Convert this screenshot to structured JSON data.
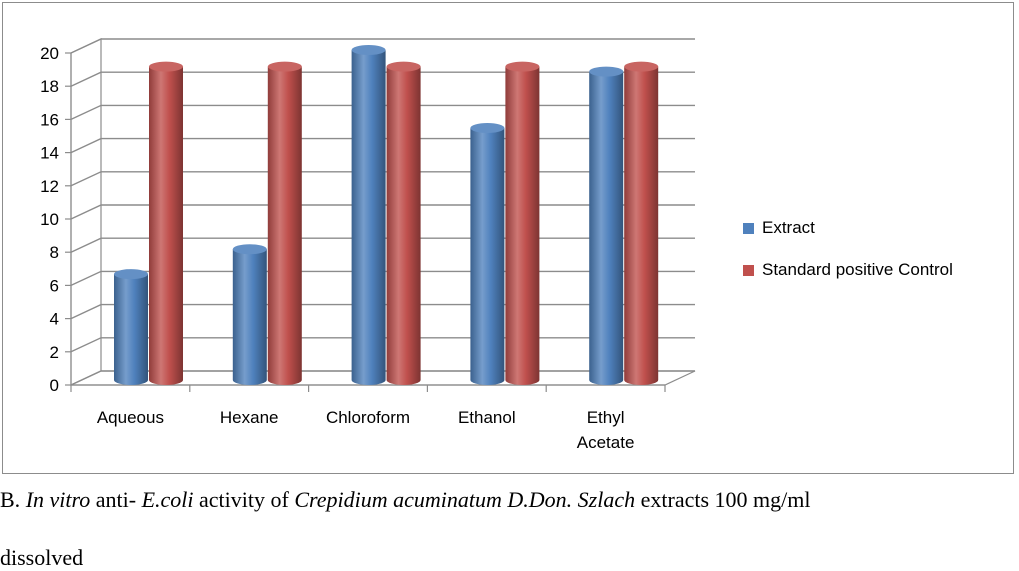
{
  "chart_data": {
    "type": "bar",
    "style": "3d-cylinder",
    "categories": [
      "Aqueous",
      "Hexane",
      "Chloroform",
      "Ethanol",
      "Ethyl Acetate"
    ],
    "category_lines": [
      [
        "Aqueous"
      ],
      [
        "Hexane"
      ],
      [
        "Chloroform"
      ],
      [
        "Ethanol"
      ],
      [
        "Ethyl",
        "Acetate"
      ]
    ],
    "series": [
      {
        "name": "Extract",
        "color": "#4f81bd",
        "values": [
          6.5,
          8,
          20,
          15.3,
          18.7
        ]
      },
      {
        "name": "Standard positive Control",
        "color": "#c0504d",
        "values": [
          19,
          19,
          19,
          19,
          19
        ]
      }
    ],
    "ylim": [
      0,
      20
    ],
    "yticks": [
      0,
      2,
      4,
      6,
      8,
      10,
      12,
      14,
      16,
      18,
      20
    ],
    "grid": true,
    "legend_position": "right"
  },
  "caption": {
    "line1": {
      "prefix": "B. ",
      "italic1": "In vitro",
      "mid1": " anti- ",
      "italic2": "E.coli",
      "mid2": " activity of ",
      "italic3": "Crepidium acuminatum D.Don. Szlach",
      "suffix": " extracts 100 mg/ml"
    },
    "line2": "dissolved"
  }
}
